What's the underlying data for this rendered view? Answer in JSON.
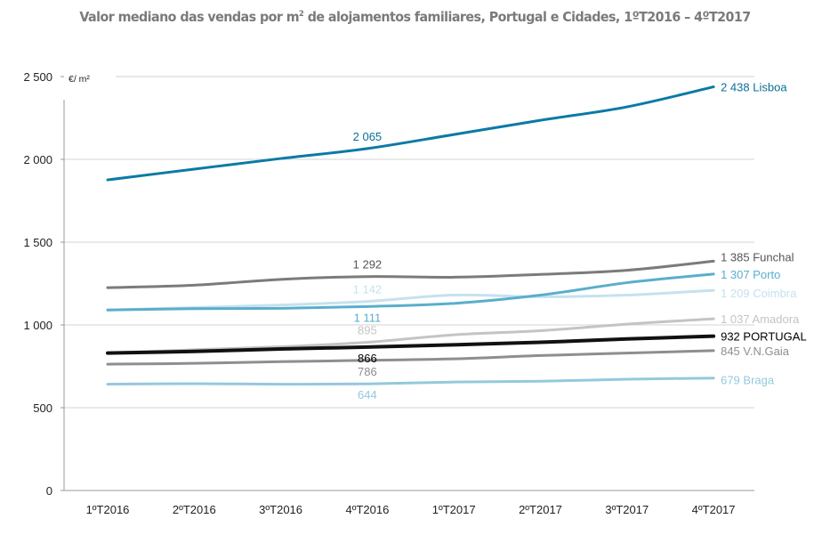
{
  "chart_data": {
    "type": "line",
    "title_main": "Valor mediano das vendas por m",
    "title_sup": "2",
    "title_rest": " de alojamentos familiares, Portugal e Cidades, 1ºT2016 – 4ºT2017",
    "unit_label": "€/ m²",
    "xlabel": "",
    "ylabel": "",
    "ylim": [
      0,
      2500
    ],
    "yticks": [
      0,
      500,
      1000,
      1500,
      2000,
      2500
    ],
    "ytick_labels": [
      "0",
      "500",
      "1 000",
      "1 500",
      "2 000",
      "2 500"
    ],
    "grid": true,
    "categories": [
      "1ºT2016",
      "2ºT2016",
      "3ºT2016",
      "4ºT2016",
      "1ºT2017",
      "2ºT2017",
      "3ºT2017",
      "4ºT2017"
    ],
    "series": [
      {
        "name": "Lisboa",
        "color": "#0a7aa6",
        "width": 3,
        "values": [
          1876,
          1941,
          2005,
          2065,
          2150,
          2236,
          2317,
          2438
        ],
        "mid_label": "2 065",
        "mid_label_pos": "above",
        "end_label": "2 438 Lisboa"
      },
      {
        "name": "Funchal",
        "color": "#7b7b7b",
        "width": 3,
        "values": [
          1225,
          1240,
          1275,
          1292,
          1288,
          1305,
          1330,
          1385
        ],
        "mid_label": "1 292",
        "mid_label_pos": "above",
        "end_label": "1 385 Funchal"
      },
      {
        "name": "Porto",
        "color": "#5aaecb",
        "width": 3,
        "values": [
          1090,
          1098,
          1100,
          1111,
          1130,
          1180,
          1255,
          1307
        ],
        "mid_label": "1 111",
        "mid_label_pos": "below",
        "end_label": "1 307 Porto"
      },
      {
        "name": "Coimbra",
        "color": "#c5e2ee",
        "width": 3,
        "values": [
          1090,
          1105,
          1120,
          1142,
          1180,
          1170,
          1180,
          1209
        ],
        "mid_label": "1 142",
        "mid_label_pos": "above",
        "end_label": "1 209 Coimbra"
      },
      {
        "name": "Amadora",
        "color": "#c4c4c4",
        "width": 3,
        "values": [
          830,
          850,
          868,
          895,
          940,
          965,
          1005,
          1037
        ],
        "mid_label": "895",
        "mid_label_pos": "above",
        "end_label": "1 037 Amadora"
      },
      {
        "name": "PORTUGAL",
        "color": "#111111",
        "width": 4,
        "values": [
          830,
          840,
          855,
          866,
          880,
          895,
          915,
          932
        ],
        "mid_label": "866",
        "mid_label_pos": "below",
        "end_label": "932 PORTUGAL"
      },
      {
        "name": "V.N.Gaia",
        "color": "#8e8e8e",
        "width": 3,
        "values": [
          763,
          768,
          778,
          786,
          795,
          815,
          830,
          845
        ],
        "mid_label": "786",
        "mid_label_pos": "below",
        "end_label": "845 V.N.Gaia"
      },
      {
        "name": "Braga",
        "color": "#93c9dc",
        "width": 3,
        "values": [
          642,
          645,
          642,
          644,
          655,
          660,
          672,
          679
        ],
        "mid_label": "644",
        "mid_label_pos": "below",
        "end_label": "679 Braga"
      }
    ]
  }
}
